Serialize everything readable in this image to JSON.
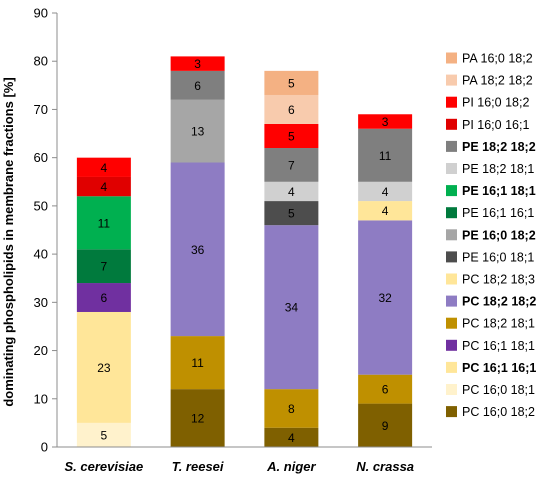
{
  "chart_data": {
    "type": "bar",
    "stacked": true,
    "ylabel": "dominating phospholipids in  membrane fractions [%]",
    "ylim": [
      0,
      90
    ],
    "yticks": [
      0,
      10,
      20,
      30,
      40,
      50,
      60,
      70,
      80,
      90
    ],
    "grid": false,
    "legend_position": "right",
    "categories": [
      "S. cerevisiae",
      "T. reesei",
      "A. niger",
      "N. crassa"
    ],
    "series": [
      {
        "name": "PC 16;0 18;2",
        "color": "#7f6000",
        "bold": false,
        "values": [
          0,
          12,
          4,
          9
        ]
      },
      {
        "name": "PC 16;0 18;1",
        "color": "#fff2cc",
        "bold": false,
        "values": [
          5,
          0,
          0,
          0
        ]
      },
      {
        "name": "PC 16;1 16;1",
        "color": "#ffe699",
        "bold": true,
        "values": [
          23,
          0,
          0,
          0
        ]
      },
      {
        "name": "PC 16;1 18;1",
        "color": "#7030a0",
        "bold": false,
        "values": [
          6,
          0,
          0,
          0
        ]
      },
      {
        "name": "PC 18;2 18;1",
        "color": "#bf9000",
        "bold": false,
        "values": [
          0,
          11,
          8,
          6
        ]
      },
      {
        "name": "PC 18;2 18;2",
        "color": "#8e7cc3",
        "bold": true,
        "values": [
          0,
          36,
          34,
          32
        ]
      },
      {
        "name": "PC 18;2 18;3",
        "color": "#ffe699",
        "bold": false,
        "values": [
          0,
          0,
          0,
          4
        ]
      },
      {
        "name": "PE 16;0 18;1",
        "color": "#4d4d4d",
        "bold": false,
        "values": [
          0,
          0,
          5,
          0
        ]
      },
      {
        "name": "PE 16;0 18;2",
        "color": "#a6a6a6",
        "bold": true,
        "values": [
          0,
          13,
          0,
          0
        ]
      },
      {
        "name": "PE 16;1 16;1",
        "color": "#007a3d",
        "bold": false,
        "values": [
          7,
          0,
          0,
          0
        ]
      },
      {
        "name": "PE 16;1 18;1",
        "color": "#00b050",
        "bold": true,
        "values": [
          11,
          0,
          0,
          0
        ]
      },
      {
        "name": "PE 18;2 18;1",
        "color": "#d0d0d0",
        "bold": false,
        "values": [
          0,
          0,
          4,
          4
        ]
      },
      {
        "name": "PE 18;2 18;2",
        "color": "#7f7f7f",
        "bold": true,
        "values": [
          0,
          6,
          7,
          11
        ]
      },
      {
        "name": "PI 16;0 16;1",
        "color": "#e00000",
        "bold": false,
        "values": [
          4,
          0,
          0,
          0
        ]
      },
      {
        "name": "PI 16;0 18;2",
        "color": "#ff0000",
        "bold": false,
        "values": [
          4,
          3,
          5,
          3
        ]
      },
      {
        "name": "PA 18;2 18;2",
        "color": "#f8cbad",
        "bold": false,
        "values": [
          0,
          0,
          6,
          0
        ]
      },
      {
        "name": "PA 16;0 18;2",
        "color": "#f4b183",
        "bold": false,
        "values": [
          0,
          0,
          5,
          0
        ]
      }
    ]
  }
}
